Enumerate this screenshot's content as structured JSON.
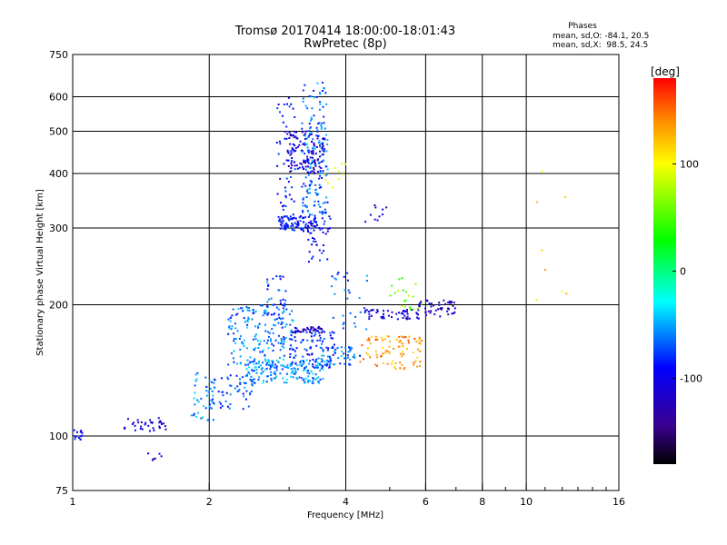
{
  "chart_data": {
    "type": "scatter",
    "title": "Tromsø 20170414 18:00:00-18:01:43",
    "subtitle": "RwPretec (8p)",
    "stats": {
      "header": "Phases",
      "line_o": "mean, sd,O: -84.1, 20.5",
      "line_x": "mean, sd,X:  98.5, 24.5"
    },
    "xlabel": "Frequency [MHz]",
    "ylabel": "Stationary phase Virtual Height [km]",
    "x_scale": "log",
    "y_scale": "log",
    "xlim": [
      1,
      16
    ],
    "ylim": [
      75,
      750
    ],
    "x_ticks": [
      1,
      2,
      4,
      6,
      8,
      10,
      16
    ],
    "x_tick_labels": [
      "1",
      "2",
      "4",
      "6",
      "8",
      "10",
      "16"
    ],
    "x_minor_ticks": [
      3,
      5,
      7,
      9,
      11,
      12,
      13,
      14,
      15
    ],
    "x_grid": [
      2,
      4,
      6,
      8,
      10
    ],
    "y_ticks": [
      75,
      100,
      200,
      300,
      400,
      500,
      600,
      750
    ],
    "y_tick_labels": [
      "75",
      "100",
      "200",
      "300",
      "400",
      "500",
      "600",
      "750"
    ],
    "y_grid": [
      100,
      200,
      300,
      400,
      500,
      600
    ],
    "grid": true,
    "colorbar": {
      "label": "[deg]",
      "range": [
        -180,
        180
      ],
      "ticks": [
        100,
        0,
        -100
      ],
      "tick_labels": [
        "100",
        "0",
        "-100"
      ]
    },
    "clusters": [
      {
        "fmin": 1.0,
        "fmax": 1.05,
        "hmin": 97,
        "hmax": 104,
        "phase": -95,
        "n": 14
      },
      {
        "fmin": 1.3,
        "fmax": 1.62,
        "hmin": 102,
        "hmax": 110,
        "phase": -110,
        "n": 34
      },
      {
        "fmin": 1.45,
        "fmax": 1.6,
        "hmin": 88,
        "hmax": 94,
        "phase": -115,
        "n": 6
      },
      {
        "fmin": 1.8,
        "fmax": 2.05,
        "hmin": 108,
        "hmax": 140,
        "phase": -60,
        "n": 36
      },
      {
        "fmin": 2.0,
        "fmax": 2.5,
        "hmin": 115,
        "hmax": 140,
        "phase": -70,
        "n": 60
      },
      {
        "fmin": 2.4,
        "fmax": 3.6,
        "hmin": 132,
        "hmax": 150,
        "phase": -55,
        "n": 170
      },
      {
        "fmin": 2.2,
        "fmax": 3.1,
        "hmin": 145,
        "hmax": 200,
        "phase": -60,
        "n": 180
      },
      {
        "fmin": 2.65,
        "fmax": 2.95,
        "hmin": 185,
        "hmax": 235,
        "phase": -75,
        "n": 40
      },
      {
        "fmin": 3.0,
        "fmax": 3.8,
        "hmin": 143,
        "hmax": 175,
        "phase": -80,
        "n": 90
      },
      {
        "fmin": 3.05,
        "fmax": 3.6,
        "hmin": 172,
        "hmax": 178,
        "phase": -115,
        "n": 40
      },
      {
        "fmin": 3.5,
        "fmax": 4.3,
        "hmin": 145,
        "hmax": 160,
        "phase": -65,
        "n": 50
      },
      {
        "fmin": 3.7,
        "fmax": 4.5,
        "hmin": 175,
        "hmax": 240,
        "phase": -70,
        "n": 30
      },
      {
        "fmin": 4.4,
        "fmax": 5.8,
        "hmin": 185,
        "hmax": 195,
        "phase": -110,
        "n": 50
      },
      {
        "fmin": 5.7,
        "fmax": 7.0,
        "hmin": 188,
        "hmax": 205,
        "phase": -120,
        "n": 50
      },
      {
        "fmin": 4.3,
        "fmax": 5.9,
        "hmin": 142,
        "hmax": 170,
        "phase": 135,
        "n": 90
      },
      {
        "fmin": 5.0,
        "fmax": 5.9,
        "hmin": 195,
        "hmax": 232,
        "phase": 60,
        "n": 20
      },
      {
        "fmin": 2.82,
        "fmax": 3.1,
        "hmin": 295,
        "hmax": 600,
        "phase": -90,
        "n": 60
      },
      {
        "fmin": 2.85,
        "fmax": 3.5,
        "hmin": 295,
        "hmax": 320,
        "phase": -90,
        "n": 90
      },
      {
        "fmin": 2.95,
        "fmax": 3.6,
        "hmin": 400,
        "hmax": 500,
        "phase": -115,
        "n": 120
      },
      {
        "fmin": 3.2,
        "fmax": 3.65,
        "hmin": 320,
        "hmax": 650,
        "phase": -65,
        "n": 160
      },
      {
        "fmin": 3.3,
        "fmax": 3.7,
        "hmin": 250,
        "hmax": 320,
        "phase": -95,
        "n": 40
      },
      {
        "fmin": 3.6,
        "fmax": 4.1,
        "hmin": 370,
        "hmax": 430,
        "phase": 110,
        "n": 10
      },
      {
        "fmin": 4.4,
        "fmax": 5.0,
        "hmin": 310,
        "hmax": 340,
        "phase": -110,
        "n": 10
      },
      {
        "fmin": 10.5,
        "fmax": 12.5,
        "hmin": 180,
        "hmax": 430,
        "phase": 110,
        "n": 8
      }
    ]
  }
}
